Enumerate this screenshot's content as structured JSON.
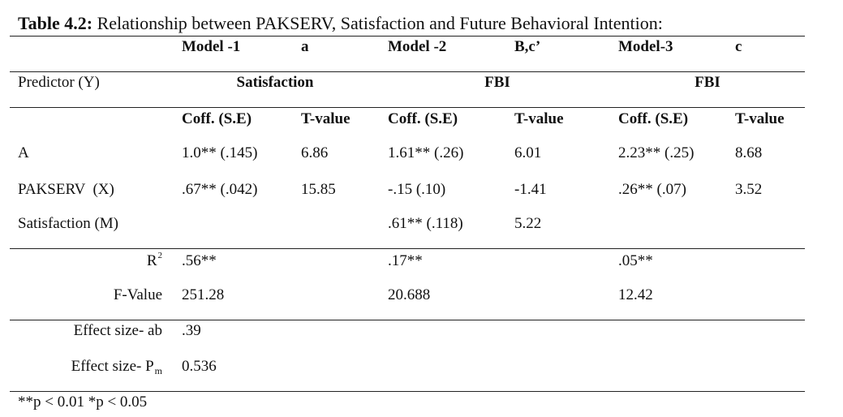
{
  "caption": {
    "label": "Table 4.2:",
    "text": "Relationship between PAKSERV, Satisfaction and Future Behavioral Intention:"
  },
  "models": [
    {
      "name": "Model -1",
      "path": "a",
      "dv": "Satisfaction"
    },
    {
      "name": "Model -2",
      "path": "B,c’",
      "dv": "FBI"
    },
    {
      "name": "Model-3",
      "path": "c",
      "dv": "FBI"
    }
  ],
  "predictor_label": "Predictor (Y)",
  "subheaders": {
    "coff": "Coff. (S.E)",
    "tval": "T-value"
  },
  "rows": [
    {
      "label": "A",
      "cells": [
        "1.0** (.145)",
        "6.86",
        "1.61** (.26)",
        "6.01",
        "2.23** (.25)",
        "8.68"
      ]
    },
    {
      "label": "PAKSERV  (X)",
      "cells": [
        ".67** (.042)",
        "15.85",
        "-.15 (.10)",
        "-1.41",
        ".26** (.07)",
        "3.52"
      ]
    },
    {
      "label": "Satisfaction (M)",
      "cells": [
        "",
        "",
        ".61** (.118)",
        "5.22",
        "",
        ""
      ]
    }
  ],
  "fit": {
    "r2_label": "R",
    "r2_sup": "2",
    "r2_values": [
      ".56**",
      ".17**",
      ".05**"
    ],
    "f_label": "F-Value",
    "f_values": [
      "251.28",
      "20.688",
      "12.42"
    ]
  },
  "effects": {
    "ab_label": "Effect size- ab",
    "ab_value": ".39",
    "pm_label": "Effect size- P",
    "pm_sub": "m",
    "pm_value": "0.536"
  },
  "footnote": "**p < 0.01 *p < 0.05"
}
